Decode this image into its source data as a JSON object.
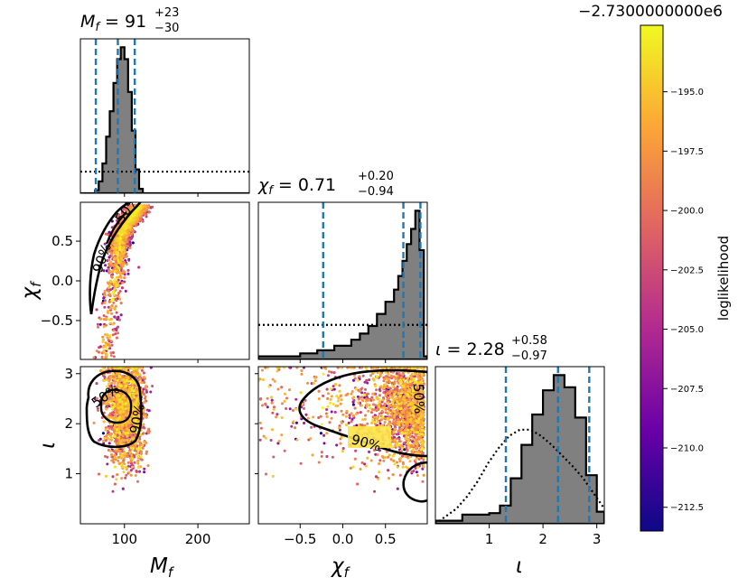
{
  "offset_label": "−2.7300000000e6",
  "colorbar": {
    "label": "loglikelihood",
    "range": [
      -213.5,
      -192.2
    ],
    "ticks": [
      "−195.0",
      "−197.5",
      "−200.0",
      "−202.5",
      "−205.0",
      "−207.5",
      "−210.0",
      "−212.5"
    ],
    "tick_values": [
      -195.0,
      -197.5,
      -200.0,
      -202.5,
      -205.0,
      -207.5,
      -210.0,
      -212.5
    ],
    "colors": [
      "#0d0887",
      "#6a00a8",
      "#b12a90",
      "#e16462",
      "#fca636",
      "#f0f921"
    ]
  },
  "titles": {
    "mf": {
      "name": "M",
      "sub": "f",
      "value": "91",
      "plus": "+23",
      "minus": "−30"
    },
    "chi": {
      "name": "χ",
      "sub": "f",
      "value": "0.71",
      "plus": "+0.20",
      "minus": "−0.94"
    },
    "iota": {
      "name": "ι",
      "sub": "",
      "value": "2.28",
      "plus": "+0.58",
      "minus": "−0.97"
    }
  },
  "axis_labels": {
    "mf": {
      "name": "M",
      "sub": "f"
    },
    "chi": {
      "name": "χ",
      "sub": "f"
    },
    "iota": {
      "name": "ι",
      "sub": ""
    }
  },
  "contour_labels": {
    "p50": "50%",
    "p90": "90%"
  },
  "chart_data": {
    "type": "corner",
    "parameters": [
      "M_f",
      "chi_f",
      "iota"
    ],
    "ranges": {
      "mf": [
        40,
        270
      ],
      "chi": [
        -0.99,
        0.99
      ],
      "iota": [
        0,
        3.14
      ]
    },
    "ticks": {
      "mf": {
        "values": [
          100,
          200
        ],
        "labels": [
          "100",
          "200"
        ]
      },
      "chi_x": {
        "values": [
          -0.5,
          0.0,
          0.5
        ],
        "labels": [
          "−0.5",
          "0.0",
          "0.5"
        ]
      },
      "chi_y": {
        "values": [
          0.5,
          0.0,
          -0.5
        ],
        "labels": [
          "0.5",
          "0.0",
          "−0.5"
        ]
      },
      "iota": {
        "values": [
          1,
          2,
          3
        ],
        "labels": [
          "1",
          "2",
          "3"
        ]
      }
    },
    "quantiles": {
      "mf": [
        61,
        91,
        114
      ],
      "chi": [
        -0.23,
        0.71,
        0.91
      ],
      "iota": [
        1.31,
        2.28,
        2.86
      ]
    },
    "histograms": {
      "mf": {
        "bin_edges": [
          40,
          50,
          60,
          65,
          70,
          75,
          80,
          85,
          90,
          95,
          100,
          105,
          110,
          115,
          120,
          125,
          270
        ],
        "posterior": [
          0,
          0,
          0.02,
          0.08,
          0.2,
          0.38,
          0.55,
          0.74,
          0.9,
          0.98,
          0.9,
          0.68,
          0.42,
          0.16,
          0.03,
          0
        ],
        "prior_level": 0.14
      },
      "chi": {
        "bin_edges": [
          -0.99,
          -0.5,
          -0.3,
          -0.1,
          0.1,
          0.2,
          0.3,
          0.4,
          0.5,
          0.6,
          0.65,
          0.7,
          0.75,
          0.8,
          0.85,
          0.9,
          0.95,
          0.99
        ],
        "posterior": [
          0.02,
          0.04,
          0.06,
          0.09,
          0.13,
          0.17,
          0.22,
          0.3,
          0.38,
          0.46,
          0.55,
          0.65,
          0.76,
          0.86,
          0.98,
          0.72,
          0.02
        ],
        "prior_level": 0.22
      },
      "iota": {
        "bin_edges": [
          0,
          0.5,
          1.0,
          1.2,
          1.4,
          1.6,
          1.8,
          2.0,
          2.2,
          2.4,
          2.6,
          2.8,
          3.0,
          3.14
        ],
        "posterior": [
          0.02,
          0.06,
          0.07,
          0.12,
          0.3,
          0.52,
          0.72,
          0.88,
          0.98,
          0.9,
          0.7,
          0.32,
          0.08
        ],
        "prior": [
          0.0,
          0.05,
          0.1,
          0.18,
          0.28,
          0.4,
          0.5,
          0.58,
          0.62,
          0.62,
          0.58,
          0.52,
          0.45,
          0.38,
          0.3,
          0.2,
          0.1
        ]
      }
    }
  }
}
